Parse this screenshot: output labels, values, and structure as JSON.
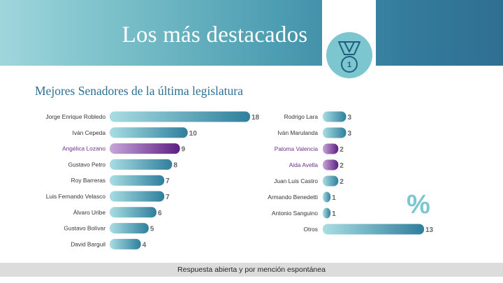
{
  "header": {
    "title": "Los más destacados"
  },
  "subtitle": "Mejores Senadores de la última legislatura",
  "percent_symbol": "%",
  "footer_text": "Respuesta abierta y por mención espontánea",
  "colors": {
    "header_start": "#9fd6dc",
    "header_end": "#2f6f92",
    "bar_teal_start": "#a9dde3",
    "bar_teal_end": "#2f7f9c",
    "bar_purple_start": "#c7a6d9",
    "bar_purple_end": "#5e1f82",
    "highlight_label": "#6e2f8f",
    "subtitle": "#2f6f92"
  },
  "icons": {
    "medal": "medal-icon"
  },
  "chart_data": [
    {
      "type": "bar",
      "orientation": "horizontal",
      "categories": [
        "Jorge Enrique Robledo",
        "Iván Cepeda",
        "Angélica Lozano",
        "Gustavo Petro",
        "Roy Barreras",
        "Luis Fernando Velasco",
        "Álvaro Uribe",
        "Gustavo Bolívar",
        "David Barguil"
      ],
      "values": [
        18,
        10,
        9,
        8,
        7,
        7,
        6,
        5,
        4
      ],
      "highlight": [
        false,
        false,
        true,
        false,
        false,
        false,
        false,
        false,
        false
      ]
    },
    {
      "type": "bar",
      "orientation": "horizontal",
      "categories": [
        "Rodrigo Lara",
        "Iván Marulanda",
        "Paloma  Valencia",
        "Aida Avella",
        "Juan Luis Castro",
        "Armando Benedetti",
        "Antonio Sanguino",
        "Otros"
      ],
      "values": [
        3,
        3,
        2,
        2,
        2,
        1,
        1,
        13
      ],
      "highlight": [
        false,
        false,
        true,
        true,
        false,
        false,
        false,
        false
      ]
    }
  ]
}
